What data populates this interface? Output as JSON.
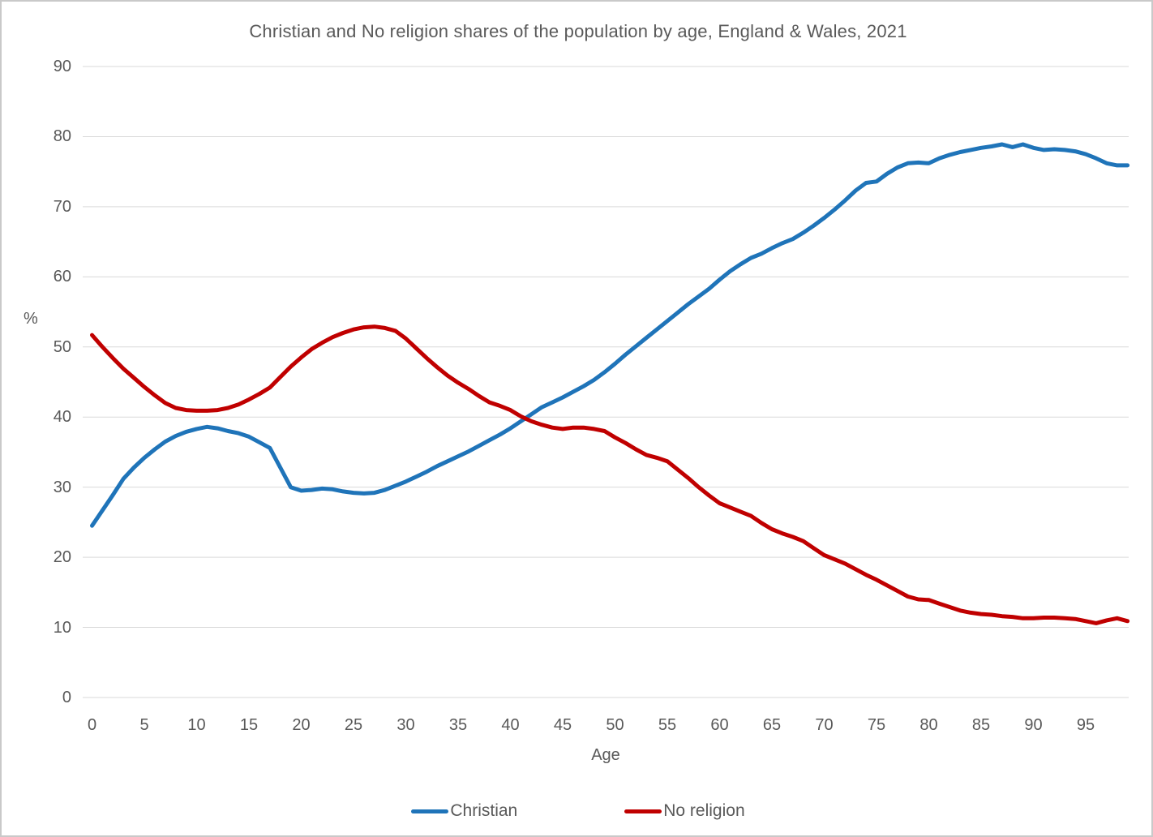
{
  "title": "Christian and No religion shares of the population by age, England & Wales, 2021",
  "y_axis_unit_label": "%",
  "x_axis_title": "Age",
  "legend": [
    {
      "label": "Christian",
      "color": "#1F74B9"
    },
    {
      "label": "No religion",
      "color": "#C00000"
    }
  ],
  "colors": {
    "christian_line": "#1F74B9",
    "no_religion_line": "#C00000",
    "gridline": "#D9D9D9",
    "axis_text": "#595959",
    "background": "#FFFFFF",
    "border": "#C9C9C9"
  },
  "chart_data": {
    "type": "line",
    "title": "Christian and No religion shares of the population by age, England & Wales, 2021",
    "xlabel": "Age",
    "ylabel": "%",
    "xlim": [
      0,
      99
    ],
    "ylim": [
      0,
      90
    ],
    "xticks": [
      0,
      5,
      10,
      15,
      20,
      25,
      30,
      35,
      40,
      45,
      50,
      55,
      60,
      65,
      70,
      75,
      80,
      85,
      90,
      95
    ],
    "yticks": [
      0,
      10,
      20,
      30,
      40,
      50,
      60,
      70,
      80,
      90
    ],
    "grid": "horizontal",
    "legend_position": "bottom",
    "x": [
      0,
      1,
      2,
      3,
      4,
      5,
      6,
      7,
      8,
      9,
      10,
      11,
      12,
      13,
      14,
      15,
      16,
      17,
      18,
      19,
      20,
      21,
      22,
      23,
      24,
      25,
      26,
      27,
      28,
      29,
      30,
      31,
      32,
      33,
      34,
      35,
      36,
      37,
      38,
      39,
      40,
      41,
      42,
      43,
      44,
      45,
      46,
      47,
      48,
      49,
      50,
      51,
      52,
      53,
      54,
      55,
      56,
      57,
      58,
      59,
      60,
      61,
      62,
      63,
      64,
      65,
      66,
      67,
      68,
      69,
      70,
      71,
      72,
      73,
      74,
      75,
      76,
      77,
      78,
      79,
      80,
      81,
      82,
      83,
      84,
      85,
      86,
      87,
      88,
      89,
      90,
      91,
      92,
      93,
      94,
      95,
      96,
      97,
      98,
      99
    ],
    "series": [
      {
        "name": "Christian",
        "color": "#1F74B9",
        "values": [
          24.5,
          26.7,
          28.9,
          31.2,
          32.8,
          34.2,
          35.4,
          36.5,
          37.3,
          37.9,
          38.3,
          38.6,
          38.4,
          38.0,
          37.7,
          37.2,
          36.4,
          35.6,
          32.8,
          30.0,
          29.5,
          29.6,
          29.8,
          29.7,
          29.4,
          29.2,
          29.1,
          29.2,
          29.6,
          30.2,
          30.8,
          31.5,
          32.2,
          33.0,
          33.7,
          34.4,
          35.1,
          35.9,
          36.7,
          37.5,
          38.4,
          39.4,
          40.4,
          41.4,
          42.1,
          42.8,
          43.6,
          44.4,
          45.3,
          46.4,
          47.6,
          48.9,
          50.1,
          51.3,
          52.5,
          53.7,
          54.9,
          56.1,
          57.2,
          58.3,
          59.6,
          60.8,
          61.8,
          62.7,
          63.3,
          64.1,
          64.8,
          65.4,
          66.3,
          67.3,
          68.4,
          69.6,
          70.9,
          72.3,
          73.4,
          73.6,
          74.7,
          75.6,
          76.2,
          76.3,
          76.2,
          76.9,
          77.4,
          77.8,
          78.1,
          78.4,
          78.6,
          78.9,
          78.5,
          78.9,
          78.4,
          78.1,
          78.2,
          78.1,
          77.9,
          77.5,
          76.9,
          76.2,
          75.9,
          75.9
        ]
      },
      {
        "name": "No religion",
        "color": "#C00000",
        "values": [
          51.7,
          50.0,
          48.4,
          46.9,
          45.6,
          44.3,
          43.1,
          42.0,
          41.3,
          41.0,
          40.9,
          40.9,
          41.0,
          41.3,
          41.8,
          42.5,
          43.3,
          44.2,
          45.7,
          47.2,
          48.5,
          49.7,
          50.6,
          51.4,
          52.0,
          52.5,
          52.8,
          52.9,
          52.7,
          52.3,
          51.2,
          49.8,
          48.4,
          47.1,
          45.9,
          44.9,
          44.0,
          43.0,
          42.1,
          41.6,
          41.0,
          40.1,
          39.4,
          38.9,
          38.5,
          38.3,
          38.5,
          38.5,
          38.3,
          38.0,
          37.1,
          36.3,
          35.4,
          34.6,
          34.2,
          33.7,
          32.5,
          31.3,
          30.0,
          28.8,
          27.7,
          27.1,
          26.5,
          25.9,
          24.9,
          24.0,
          23.4,
          22.9,
          22.3,
          21.3,
          20.3,
          19.7,
          19.1,
          18.3,
          17.5,
          16.8,
          16.0,
          15.2,
          14.4,
          14.0,
          13.9,
          13.4,
          12.9,
          12.4,
          12.1,
          11.9,
          11.8,
          11.6,
          11.5,
          11.3,
          11.3,
          11.4,
          11.4,
          11.3,
          11.2,
          10.9,
          10.6,
          11.0,
          11.3,
          10.9
        ]
      }
    ]
  }
}
